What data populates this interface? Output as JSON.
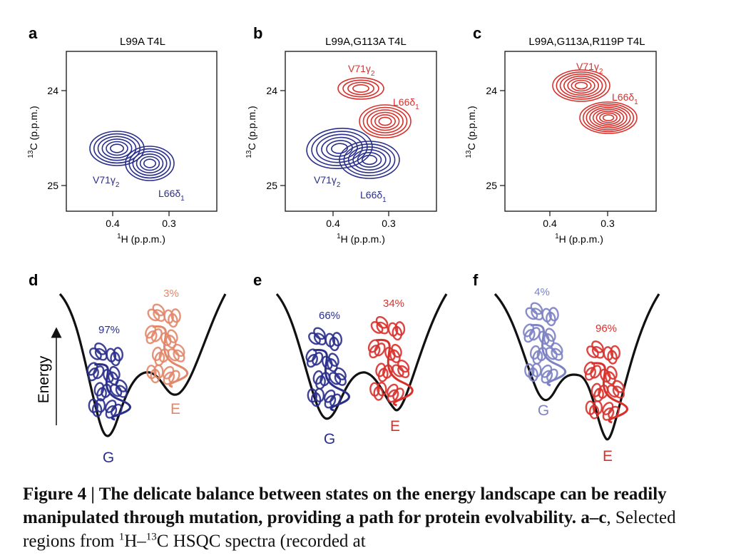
{
  "panels_spectra": [
    {
      "letter": "a",
      "title": "L99A T4L",
      "peaks": [
        {
          "label": "V71γ",
          "sub": "2",
          "color": "#2a2f8c"
        },
        {
          "label": "L66δ",
          "sub": "1",
          "color": "#2a2f8c"
        }
      ]
    },
    {
      "letter": "b",
      "title": "L99A,G113A T4L",
      "peaks": [
        {
          "label": "V71γ",
          "sub": "2",
          "color": "#d8312c"
        },
        {
          "label": "L66δ",
          "sub": "1",
          "color": "#d8312c"
        },
        {
          "label": "V71γ",
          "sub": "2",
          "color": "#2a2f8c"
        },
        {
          "label": "L66δ",
          "sub": "1",
          "color": "#2a2f8c"
        }
      ]
    },
    {
      "letter": "c",
      "title": "L99A,G113A,R119P T4L",
      "peaks": [
        {
          "label": "V71γ",
          "sub": "2",
          "color": "#d8312c"
        },
        {
          "label": "L66δ",
          "sub": "1",
          "color": "#d8312c"
        }
      ]
    }
  ],
  "axes": {
    "x_label_sup": "1",
    "x_label": "H  (p.p.m.)",
    "y_label_sup": "13",
    "y_label": "C  (p.p.m.)",
    "x_ticks": [
      "0.4",
      "0.3"
    ],
    "y_ticks": [
      "24",
      "25"
    ]
  },
  "panels_energy": [
    {
      "letter": "d",
      "g_pct": "97%",
      "e_pct": "3%",
      "g_label": "G",
      "e_label": "E",
      "g_color": "#2a2f8c",
      "e_color": "#e2876a"
    },
    {
      "letter": "e",
      "g_pct": "66%",
      "e_pct": "34%",
      "g_label": "G",
      "e_label": "E",
      "g_color": "#2a2f8c",
      "e_color": "#d8312c"
    },
    {
      "letter": "f",
      "g_pct": "4%",
      "e_pct": "96%",
      "g_label": "G",
      "e_label": "E",
      "g_color": "#7c82c4",
      "e_color": "#d8312c"
    }
  ],
  "energy_axis_label": "Energy",
  "caption": {
    "figure": "Figure 4",
    "sep": " | ",
    "title": "The delicate balance between states on the energy landscape can be readily manipulated through mutation, providing a path for protein evolvability.",
    "body_lead": "a–c",
    "body_text_1": ", Selected regions from ",
    "sup_1": "1",
    "body_text_2": "H–",
    "sup_2": "13",
    "body_text_3": "C HSQC spectra (recorded at"
  },
  "colors": {
    "blue": "#2a2f8c",
    "red": "#d8312c",
    "salmon": "#e2876a",
    "lightblue": "#7c82c4"
  }
}
